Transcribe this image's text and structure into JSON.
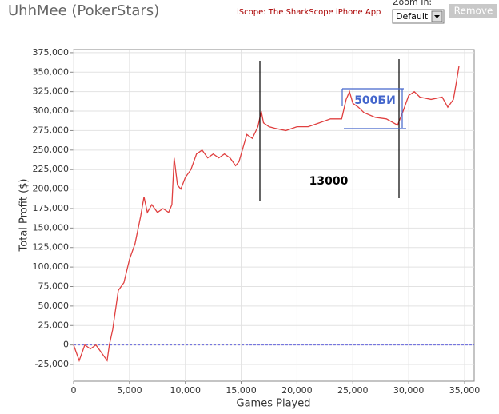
{
  "header": {
    "title": "UhhMee (PokerStars)",
    "app_link": "iScope: The SharkScope iPhone App"
  },
  "zoom": {
    "label": "Zoom In:",
    "value": "Default",
    "button": "Remove"
  },
  "chart_data": {
    "type": "line",
    "xlabel": "Games Played",
    "ylabel": "Total Profit ($)",
    "annotations": [
      "500БИ",
      "13000"
    ],
    "xlim": [
      0,
      35860
    ],
    "ylim": [
      -46500,
      379000
    ],
    "xticks": [
      0,
      {
        "value": 5000,
        "label": "5,000"
      },
      {
        "value": 10000,
        "label": "10,000"
      },
      {
        "value": 15000,
        "label": "15,000"
      },
      {
        "value": 20000,
        "label": "20,000"
      },
      {
        "value": 25000,
        "label": "25,000"
      },
      {
        "value": 30000,
        "label": "30,000"
      },
      {
        "value": 35000,
        "label": "35,000"
      }
    ],
    "yticks": [
      {
        "value": -25000,
        "label": "-25,000"
      },
      0,
      {
        "value": 25000,
        "label": "25,000"
      },
      {
        "value": 50000,
        "label": "50,000"
      },
      {
        "value": 75000,
        "label": "75,000"
      },
      {
        "value": 100000,
        "label": "100,000"
      },
      {
        "value": 125000,
        "label": "125,000"
      },
      {
        "value": 150000,
        "label": "150,000"
      },
      {
        "value": 175000,
        "label": "175,000"
      },
      {
        "value": 200000,
        "label": "200,000"
      },
      {
        "value": 225000,
        "label": "225,000"
      },
      {
        "value": 250000,
        "label": "250,000"
      },
      {
        "value": 275000,
        "label": "275,000"
      },
      {
        "value": 300000,
        "label": "300,000"
      },
      {
        "value": 325000,
        "label": "325,000"
      },
      {
        "value": 350000,
        "label": "350,000"
      },
      {
        "value": 375000,
        "label": "375,000"
      }
    ],
    "grid": true,
    "series": [
      {
        "color": "#e04040",
        "x": [
          0,
          500,
          1000,
          1500,
          2000,
          2500,
          3000,
          3200,
          3500,
          4000,
          4500,
          5000,
          5500,
          6000,
          6300,
          6600,
          7000,
          7500,
          8000,
          8500,
          8800,
          9000,
          9300,
          9600,
          10000,
          10500,
          11000,
          11500,
          12000,
          12500,
          13000,
          13500,
          14000,
          14500,
          14800,
          15000,
          15500,
          16000,
          16500,
          16800,
          17000,
          17500,
          18000,
          19000,
          20000,
          21000,
          22000,
          23000,
          24000,
          24400,
          24700,
          25000,
          25500,
          26000,
          27000,
          28000,
          29000,
          29500,
          30000,
          30500,
          31000,
          32000,
          33000,
          33500,
          34000,
          34300,
          34500
        ],
        "values": [
          0,
          -20000,
          0,
          -5000,
          0,
          -10000,
          -20000,
          0,
          20000,
          70000,
          80000,
          110000,
          130000,
          165000,
          190000,
          170000,
          180000,
          170000,
          175000,
          170000,
          180000,
          240000,
          205000,
          200000,
          215000,
          225000,
          245000,
          250000,
          240000,
          245000,
          240000,
          245000,
          240000,
          230000,
          235000,
          245000,
          270000,
          265000,
          280000,
          300000,
          285000,
          280000,
          278000,
          275000,
          280000,
          280000,
          285000,
          290000,
          290000,
          315000,
          325000,
          310000,
          305000,
          298000,
          292000,
          290000,
          282000,
          300000,
          320000,
          325000,
          318000,
          315000,
          318000,
          305000,
          315000,
          340000,
          358000
        ]
      }
    ]
  }
}
